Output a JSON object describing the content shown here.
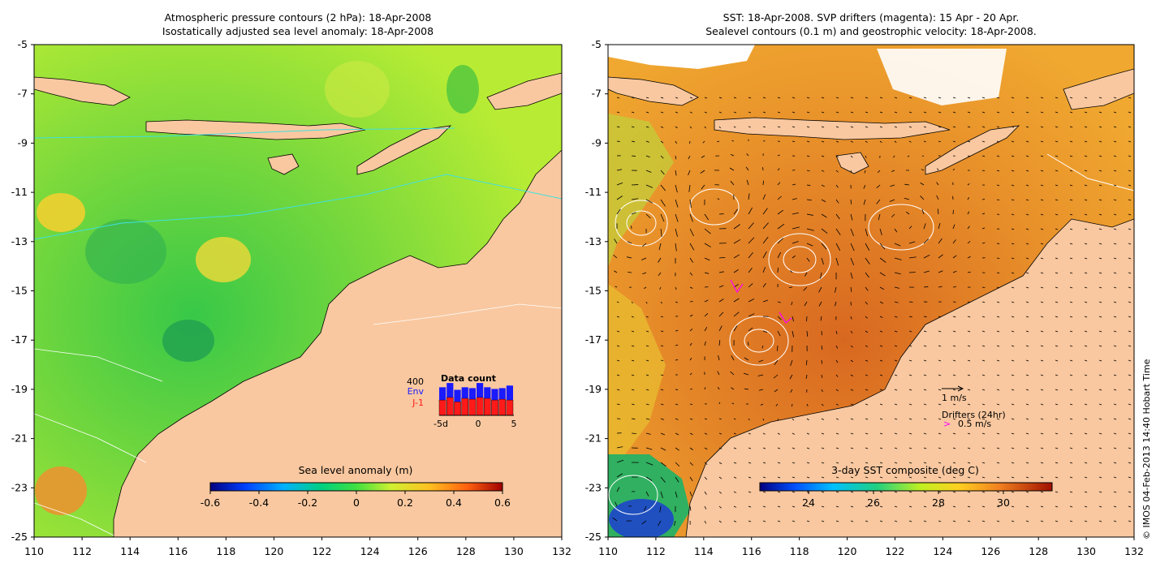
{
  "left_panel": {
    "title_line1": "Atmospheric pressure contours (2 hPa): 18-Apr-2008",
    "title_line2": "Isostatically adjusted sea level anomaly: 18-Apr-2008",
    "lon_ticks": [
      "110",
      "112",
      "114",
      "116",
      "118",
      "120",
      "122",
      "124",
      "126",
      "128",
      "130",
      "132"
    ],
    "lat_ticks": [
      "-5",
      "-7",
      "-9",
      "-11",
      "-13",
      "-15",
      "-17",
      "-19",
      "-21",
      "-23",
      "-25"
    ],
    "colorbar": {
      "title": "Sea level anomaly (m)",
      "ticks": [
        "-0.6",
        "-0.4",
        "-0.2",
        "0",
        "0.2",
        "0.4",
        "0.6"
      ],
      "range": [
        -0.6,
        0.6
      ]
    },
    "inset": {
      "title": "Data count",
      "max_label": "400",
      "series1": "Env",
      "series2": "J-1",
      "x_ticks": [
        "-5d",
        "0",
        "5"
      ],
      "env_counts": [
        330,
        380,
        300,
        330,
        320,
        380,
        330,
        310,
        320,
        350
      ],
      "j1_counts": [
        180,
        210,
        160,
        200,
        190,
        210,
        200,
        180,
        190,
        180
      ],
      "max": 400
    }
  },
  "right_panel": {
    "title_line1": "SST: 18-Apr-2008. SVP drifters (magenta): 15 Apr - 20 Apr.",
    "title_line2": "Sealevel contours (0.1 m) and geostrophic velocity: 18-Apr-2008.",
    "lon_ticks": [
      "110",
      "112",
      "114",
      "116",
      "118",
      "120",
      "122",
      "124",
      "126",
      "128",
      "130",
      "132"
    ],
    "lat_ticks": [
      "-5",
      "-7",
      "-9",
      "-11",
      "-13",
      "-15",
      "-17",
      "-19",
      "-21",
      "-23",
      "-25"
    ],
    "colorbar": {
      "title": "3-day SST composite (deg C)",
      "ticks": [
        "24",
        "26",
        "28",
        "30"
      ],
      "range": [
        22.5,
        31.5
      ]
    },
    "velocity_legend": "1 m/s",
    "drifter_legend_title": "Drifters (24hr)",
    "drifter_legend_symbol": ">",
    "drifter_legend_value": "0.5 m/s"
  },
  "map_extent": {
    "lon": [
      110,
      132
    ],
    "lat": [
      -25,
      -5
    ]
  },
  "credit": "© IMOS 04-Feb-2013 14:40 Hobart Time",
  "colors": {
    "land": "#f9c8a0",
    "ocean_left": "#8ee03a",
    "ocean_right": "#e88a2a",
    "env_bar": "#1a1aff",
    "j1_bar": "#ff1a1a",
    "drifter": "#ff00ff",
    "cyan_contour": "#40e0e0"
  }
}
